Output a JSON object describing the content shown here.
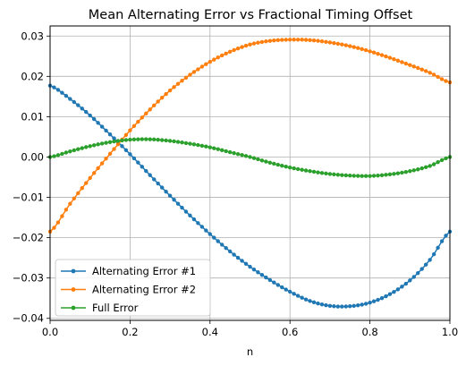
{
  "chart_data": {
    "type": "line",
    "title": "Mean Alternating Error vs Fractional Timing Offset",
    "xlabel": "n",
    "ylabel": "",
    "xlim": [
      0,
      1
    ],
    "ylim": [
      -0.0405,
      0.0325
    ],
    "xticks": [
      0.0,
      0.2,
      0.4,
      0.6,
      0.8,
      1.0
    ],
    "xtick_labels": [
      "0.0",
      "0.2",
      "0.4",
      "0.6",
      "0.8",
      "1.0"
    ],
    "yticks": [
      -0.04,
      -0.03,
      -0.02,
      -0.01,
      0.0,
      0.01,
      0.02,
      0.03
    ],
    "ytick_labels": [
      "−0.04",
      "−0.03",
      "−0.02",
      "−0.01",
      "0.00",
      "0.01",
      "0.02",
      "0.03"
    ],
    "grid": true,
    "legend_position": "lower-left",
    "marker": "circle",
    "series": [
      {
        "name": "Alternating Error #1",
        "color": "#1f77b4",
        "x": [
          0.0,
          0.05,
          0.1,
          0.15,
          0.2,
          0.25,
          0.3,
          0.35,
          0.4,
          0.45,
          0.5,
          0.55,
          0.6,
          0.65,
          0.7,
          0.75,
          0.8,
          0.85,
          0.9,
          0.95,
          1.0
        ],
        "y": [
          0.0177,
          0.0144,
          0.0103,
          0.0056,
          0.0007,
          -0.0045,
          -0.0096,
          -0.0145,
          -0.0191,
          -0.0234,
          -0.0272,
          -0.0305,
          -0.0334,
          -0.0357,
          -0.0369,
          -0.037,
          -0.0361,
          -0.034,
          -0.0306,
          -0.0255,
          -0.0185
        ]
      },
      {
        "name": "Alternating Error #2",
        "color": "#ff7f0e",
        "x": [
          0.0,
          0.05,
          0.1,
          0.15,
          0.2,
          0.25,
          0.3,
          0.35,
          0.4,
          0.45,
          0.5,
          0.55,
          0.6,
          0.65,
          0.7,
          0.75,
          0.8,
          0.85,
          0.9,
          0.95,
          1.0
        ],
        "y": [
          -0.0185,
          -0.0116,
          -0.0052,
          0.0008,
          0.0066,
          0.0118,
          0.0165,
          0.0204,
          0.0236,
          0.0261,
          0.0279,
          0.0288,
          0.0291,
          0.029,
          0.0284,
          0.0275,
          0.0262,
          0.0246,
          0.0228,
          0.0209,
          0.0185
        ]
      },
      {
        "name": "Full Error",
        "color": "#2ca02c",
        "x": [
          0.0,
          0.05,
          0.1,
          0.15,
          0.2,
          0.25,
          0.3,
          0.35,
          0.4,
          0.45,
          0.5,
          0.55,
          0.6,
          0.65,
          0.7,
          0.75,
          0.8,
          0.85,
          0.9,
          0.95,
          1.0
        ],
        "y": [
          0.0,
          0.0014,
          0.0027,
          0.0037,
          0.0043,
          0.0044,
          0.004,
          0.0033,
          0.0024,
          0.0012,
          0.0,
          -0.0014,
          -0.0026,
          -0.0035,
          -0.0042,
          -0.0046,
          -0.0047,
          -0.0043,
          -0.0035,
          -0.0022,
          0.0
        ]
      }
    ]
  }
}
